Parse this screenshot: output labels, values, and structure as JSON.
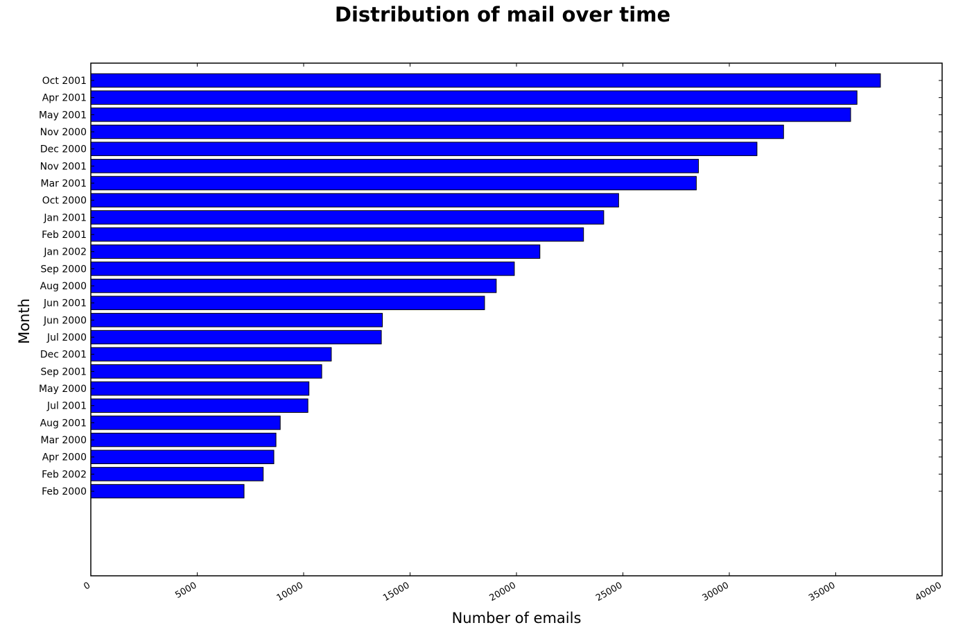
{
  "chart_data": {
    "type": "bar",
    "orientation": "horizontal",
    "title": "Distribution of mail over time",
    "xlabel": "Number of emails",
    "ylabel": "Month",
    "xlim": [
      0,
      40000
    ],
    "xticks": [
      0,
      5000,
      10000,
      15000,
      20000,
      25000,
      30000,
      35000,
      40000
    ],
    "grid": false,
    "legend": "none",
    "bar_color": "#0000ff",
    "categories": [
      "Oct 2001",
      "Apr 2001",
      "May 2001",
      "Nov 2000",
      "Dec 2000",
      "Nov 2001",
      "Mar 2001",
      "Oct 2000",
      "Jan 2001",
      "Feb 2001",
      "Jan 2002",
      "Sep 2000",
      "Aug 2000",
      "Jun 2001",
      "Jun 2000",
      "Jul 2000",
      "Dec 2001",
      "Sep 2001",
      "May 2000",
      "Jul 2001",
      "Aug 2001",
      "Mar 2000",
      "Apr 2000",
      "Feb 2002",
      "Feb 2000"
    ],
    "values": [
      37100,
      36000,
      35700,
      32550,
      31300,
      28550,
      28450,
      24800,
      24100,
      23150,
      21100,
      19900,
      19050,
      18500,
      13700,
      13650,
      11300,
      10850,
      10250,
      10200,
      8900,
      8700,
      8600,
      8100,
      7200
    ]
  }
}
